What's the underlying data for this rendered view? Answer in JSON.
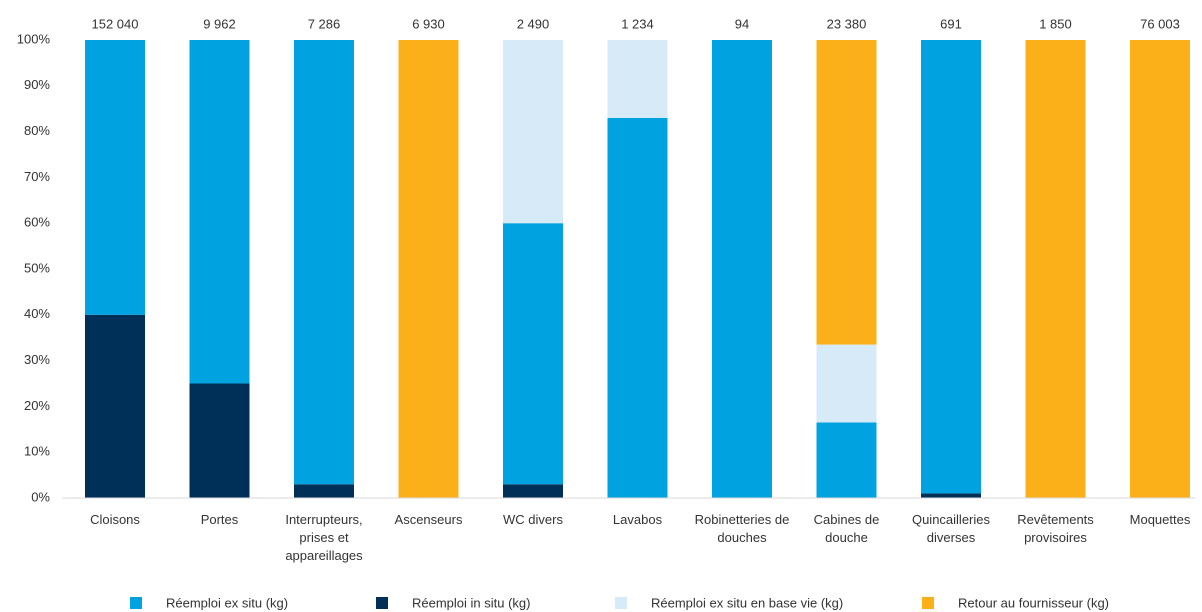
{
  "chart_data": {
    "type": "stacked_bar_percent",
    "categories": [
      "Cloisons",
      "Portes",
      "Interrupteurs, prises et appareillages",
      "Ascenseurs",
      "WC divers",
      "Lavabos",
      "Robinetteries de douches",
      "Cabines de douche",
      "Quincailleries diverses",
      "Revêtements provisoires",
      "Moquettes"
    ],
    "totals": [
      152040,
      9962,
      7286,
      6930,
      2490,
      1234,
      94,
      23380,
      691,
      1850,
      76003
    ],
    "total_labels": [
      "152 040",
      "9 962",
      "7 286",
      "6 930",
      "2 490",
      "1 234",
      "94",
      "23 380",
      "691",
      "1 850",
      "76 003"
    ],
    "series": [
      {
        "name": "Réemploi in situ (kg)",
        "color": "#003057",
        "values": [
          40,
          25,
          3,
          0,
          3,
          0,
          0,
          0,
          1,
          0,
          0
        ]
      },
      {
        "name": "Réemploi ex situ (kg)",
        "color": "#00a3e0",
        "values": [
          60,
          75,
          97,
          0,
          57,
          83,
          100,
          16.5,
          99,
          0,
          0
        ]
      },
      {
        "name": "Réemploi ex situ en base vie (kg)",
        "color": "#d6eaf8",
        "values": [
          0,
          0,
          0,
          0,
          40,
          17,
          0,
          17,
          0,
          0,
          0
        ]
      },
      {
        "name": "Retour au fournisseur (kg)",
        "color": "#fbb01a",
        "values": [
          0,
          0,
          0,
          100,
          0,
          0,
          0,
          66.5,
          0,
          100,
          100
        ]
      }
    ],
    "legend_order": [
      1,
      0,
      2,
      3
    ],
    "ylim": [
      0,
      100
    ],
    "yticks": [
      {
        "value": 0,
        "label": "0%"
      },
      {
        "value": 10,
        "label": "10%"
      },
      {
        "value": 20,
        "label": "20%"
      },
      {
        "value": 30,
        "label": "30%"
      },
      {
        "value": 40,
        "label": "40%"
      },
      {
        "value": 50,
        "label": "50%"
      },
      {
        "value": 60,
        "label": "60%"
      },
      {
        "value": 70,
        "label": "70%"
      },
      {
        "value": 80,
        "label": "80%"
      },
      {
        "value": 90,
        "label": "90%"
      },
      {
        "value": 100,
        "label": "100%"
      }
    ],
    "grid": false
  }
}
